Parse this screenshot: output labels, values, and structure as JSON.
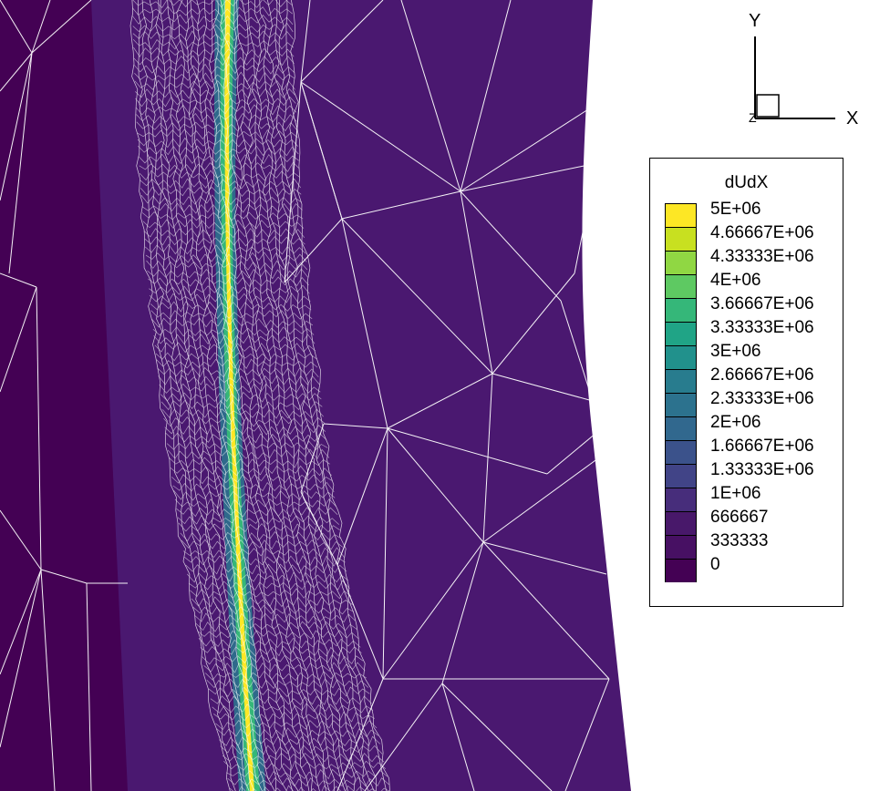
{
  "triad": {
    "y_label": "Y",
    "x_label": "X",
    "z_label": "Z"
  },
  "legend": {
    "title": "dUdX",
    "levels": [
      {
        "label": "5E+06",
        "color": "#fde725"
      },
      {
        "label": "4.66667E+06",
        "color": "#c8e020"
      },
      {
        "label": "4.33333E+06",
        "color": "#90d743"
      },
      {
        "label": "4E+06",
        "color": "#5ec962"
      },
      {
        "label": "3.66667E+06",
        "color": "#35b779"
      },
      {
        "label": "3.33333E+06",
        "color": "#20a486"
      },
      {
        "label": "3E+06",
        "color": "#21918c"
      },
      {
        "label": "2.66667E+06",
        "color": "#287c8e"
      },
      {
        "label": "2.33333E+06",
        "color": "#2c728e"
      },
      {
        "label": "2E+06",
        "color": "#31688e"
      },
      {
        "label": "1.66667E+06",
        "color": "#3b528b"
      },
      {
        "label": "1.33333E+06",
        "color": "#414487"
      },
      {
        "label": "1E+06",
        "color": "#472d7b"
      },
      {
        "label": "666667",
        "color": "#48186a"
      },
      {
        "label": "333333",
        "color": "#471063"
      },
      {
        "label": "0",
        "color": "#440154"
      }
    ]
  }
}
